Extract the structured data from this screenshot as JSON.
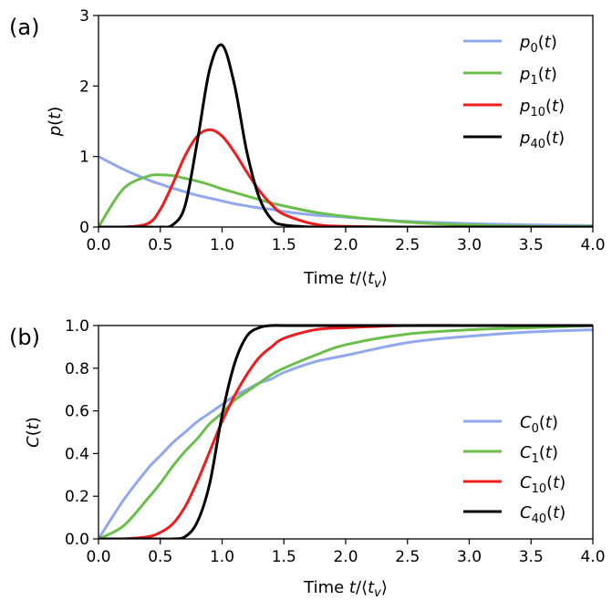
{
  "chart_data": [
    {
      "type": "line",
      "panel_label": "(a)",
      "xlabel": "Time t/⟨t_v⟩",
      "ylabel": "p(t)",
      "xlim": [
        0,
        4
      ],
      "ylim": [
        0,
        3
      ],
      "xticks": [
        "0.0",
        "0.5",
        "1.0",
        "1.5",
        "2.0",
        "2.5",
        "3.0",
        "3.5",
        "4.0"
      ],
      "yticks": [
        "0",
        "1",
        "2",
        "3"
      ],
      "legend_position": "top-right",
      "x": [
        0,
        0.2,
        0.4,
        0.5,
        0.6,
        0.7,
        0.8,
        0.9,
        1.0,
        1.1,
        1.2,
        1.3,
        1.4,
        1.5,
        1.75,
        2.0,
        2.5,
        3.0,
        3.5,
        4.0
      ],
      "series": [
        {
          "name": "p0(t)",
          "sub": "0",
          "color": "#8fa8f0",
          "values": [
            1.0,
            0.82,
            0.67,
            0.61,
            0.55,
            0.5,
            0.45,
            0.41,
            0.37,
            0.33,
            0.3,
            0.27,
            0.25,
            0.22,
            0.17,
            0.14,
            0.08,
            0.05,
            0.03,
            0.02
          ]
        },
        {
          "name": "p1(t)",
          "sub": "1",
          "color": "#6abf4b",
          "values": [
            0.0,
            0.54,
            0.72,
            0.74,
            0.73,
            0.69,
            0.65,
            0.6,
            0.54,
            0.49,
            0.44,
            0.39,
            0.34,
            0.3,
            0.21,
            0.15,
            0.07,
            0.03,
            0.01,
            0.01
          ]
        },
        {
          "name": "p10(t)",
          "sub": "10",
          "color": "#ee1c1c",
          "values": [
            0.0,
            0.0,
            0.05,
            0.25,
            0.61,
            1.01,
            1.29,
            1.38,
            1.29,
            1.06,
            0.78,
            0.52,
            0.32,
            0.18,
            0.04,
            0.01,
            0.0,
            0.0,
            0.0,
            0.0
          ]
        },
        {
          "name": "p40(t)",
          "sub": "40",
          "color": "#000000",
          "values": [
            0.0,
            0.0,
            0.0,
            0.0,
            0.03,
            0.3,
            1.22,
            2.24,
            2.58,
            2.02,
            1.07,
            0.42,
            0.11,
            0.03,
            0.0,
            0.0,
            0.0,
            0.0,
            0.0,
            0.0
          ]
        }
      ]
    },
    {
      "type": "line",
      "panel_label": "(b)",
      "xlabel": "Time t/⟨t_v⟩",
      "ylabel": "C(t)",
      "xlim": [
        0,
        4
      ],
      "ylim": [
        0,
        1
      ],
      "xticks": [
        "0.0",
        "0.5",
        "1.0",
        "1.5",
        "2.0",
        "2.5",
        "3.0",
        "3.5",
        "4.0"
      ],
      "yticks": [
        "0.0",
        "0.2",
        "0.4",
        "0.6",
        "0.8",
        "1.0"
      ],
      "legend_position": "bottom-right",
      "x": [
        0,
        0.2,
        0.4,
        0.5,
        0.6,
        0.7,
        0.8,
        0.9,
        1.0,
        1.1,
        1.2,
        1.3,
        1.4,
        1.5,
        1.75,
        2.0,
        2.5,
        3.0,
        3.5,
        4.0
      ],
      "series": [
        {
          "name": "C0(t)",
          "sub": "0",
          "color": "#8fa8f0",
          "values": [
            0.0,
            0.18,
            0.33,
            0.39,
            0.45,
            0.5,
            0.55,
            0.59,
            0.63,
            0.67,
            0.7,
            0.73,
            0.75,
            0.78,
            0.83,
            0.86,
            0.92,
            0.95,
            0.97,
            0.98
          ]
        },
        {
          "name": "C1(t)",
          "sub": "1",
          "color": "#6abf4b",
          "values": [
            0.0,
            0.06,
            0.19,
            0.26,
            0.34,
            0.41,
            0.47,
            0.54,
            0.59,
            0.65,
            0.69,
            0.73,
            0.77,
            0.8,
            0.86,
            0.91,
            0.96,
            0.98,
            0.99,
            1.0
          ]
        },
        {
          "name": "C10(t)",
          "sub": "10",
          "color": "#ee1c1c",
          "values": [
            0.0,
            0.0,
            0.01,
            0.03,
            0.07,
            0.15,
            0.27,
            0.41,
            0.55,
            0.67,
            0.77,
            0.85,
            0.9,
            0.94,
            0.98,
            0.99,
            1.0,
            1.0,
            1.0,
            1.0
          ]
        },
        {
          "name": "C40(t)",
          "sub": "40",
          "color": "#000000",
          "values": [
            0.0,
            0.0,
            0.0,
            0.0,
            0.0,
            0.01,
            0.08,
            0.26,
            0.58,
            0.82,
            0.95,
            0.99,
            1.0,
            1.0,
            1.0,
            1.0,
            1.0,
            1.0,
            1.0,
            1.0
          ]
        }
      ]
    }
  ]
}
